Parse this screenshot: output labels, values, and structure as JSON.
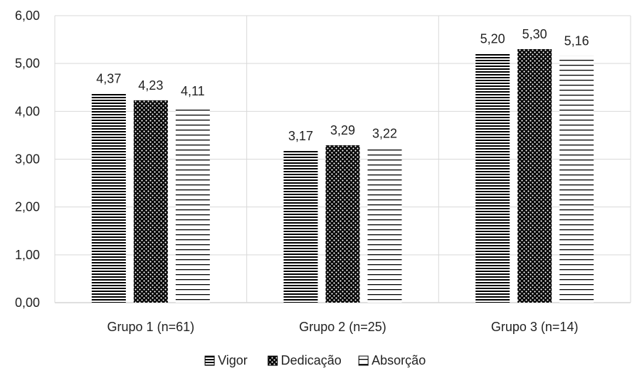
{
  "chart_data": {
    "type": "bar",
    "categories": [
      "Grupo 1 (n=61)",
      "Grupo 2 (n=25)",
      "Grupo 3 (n=14)"
    ],
    "series": [
      {
        "name": "Vigor",
        "values": [
          4.37,
          3.17,
          5.2
        ],
        "labels": [
          "4,37",
          "3,17",
          "5,20"
        ],
        "pattern": "dense-horizontal-lines"
      },
      {
        "name": "Dedicação",
        "values": [
          4.23,
          3.29,
          5.3
        ],
        "labels": [
          "4,23",
          "3,29",
          "5,30"
        ],
        "pattern": "white-dots-on-black"
      },
      {
        "name": "Absorção",
        "values": [
          4.11,
          3.22,
          5.16
        ],
        "labels": [
          "4,11",
          "3,22",
          "5,16"
        ],
        "pattern": "sparse-horizontal-lines"
      }
    ],
    "y_ticks": [
      0,
      1,
      2,
      3,
      4,
      5,
      6
    ],
    "y_tick_labels": [
      "0,00",
      "1,00",
      "2,00",
      "3,00",
      "4,00",
      "5,00",
      "6,00"
    ],
    "ylim": [
      0,
      6
    ],
    "title": "",
    "xlabel": "",
    "ylabel": "",
    "grid": {
      "horizontal": true,
      "vertical_category_separators": true
    },
    "legend": {
      "placement": "bottom-center",
      "entries": [
        "Vigor",
        "Dedicação",
        "Absorção"
      ]
    },
    "colors": {
      "bar": "#000000",
      "grid": "#d9d9d9",
      "axis": "#bfbfbf",
      "text": "#222222"
    }
  }
}
